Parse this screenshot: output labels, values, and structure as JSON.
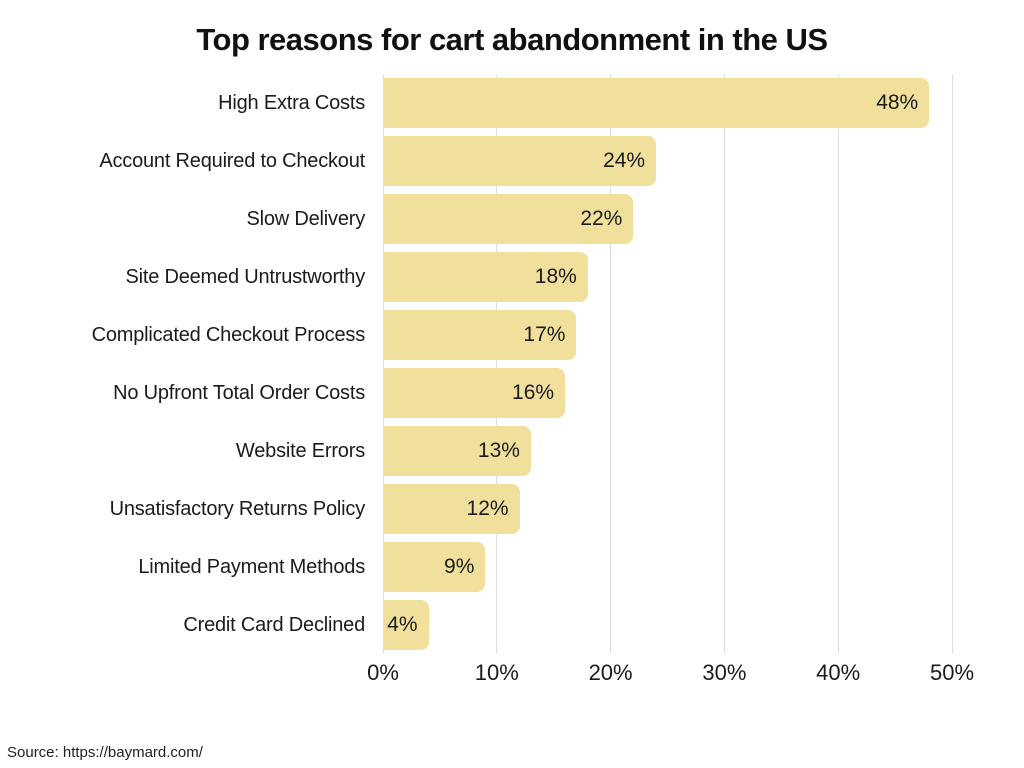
{
  "title": "Top reasons for cart abandonment in the US",
  "source_note": "Source: https://baymard.com/",
  "colors": {
    "bar": "#F0E09C",
    "text": "#1B1B1B",
    "gridline": "#DCDCDC",
    "background": "#FFFFFF"
  },
  "chart_data": {
    "type": "bar",
    "orientation": "horizontal",
    "title": "Top reasons for cart abandonment in the US",
    "categories": [
      "High Extra Costs",
      "Account Required to Checkout",
      "Slow Delivery",
      "Site Deemed Untrustworthy",
      "Complicated Checkout Process",
      "No Upfront Total Order Costs",
      "Website Errors",
      "Unsatisfactory Returns Policy",
      "Limited Payment Methods",
      "Credit Card Declined"
    ],
    "values": [
      48,
      24,
      22,
      18,
      17,
      16,
      13,
      12,
      9,
      4
    ],
    "value_labels": [
      "48%",
      "24%",
      "22%",
      "18%",
      "17%",
      "16%",
      "13%",
      "12%",
      "9%",
      "4%"
    ],
    "xlabel": "",
    "ylabel": "",
    "xlim": [
      0,
      50
    ],
    "x_ticks": [
      "0%",
      "10%",
      "20%",
      "30%",
      "40%",
      "50%"
    ],
    "x_tick_values": [
      0,
      10,
      20,
      30,
      40,
      50
    ],
    "grid": "vertical",
    "legend": "none",
    "value_label_position": "inside-end"
  }
}
